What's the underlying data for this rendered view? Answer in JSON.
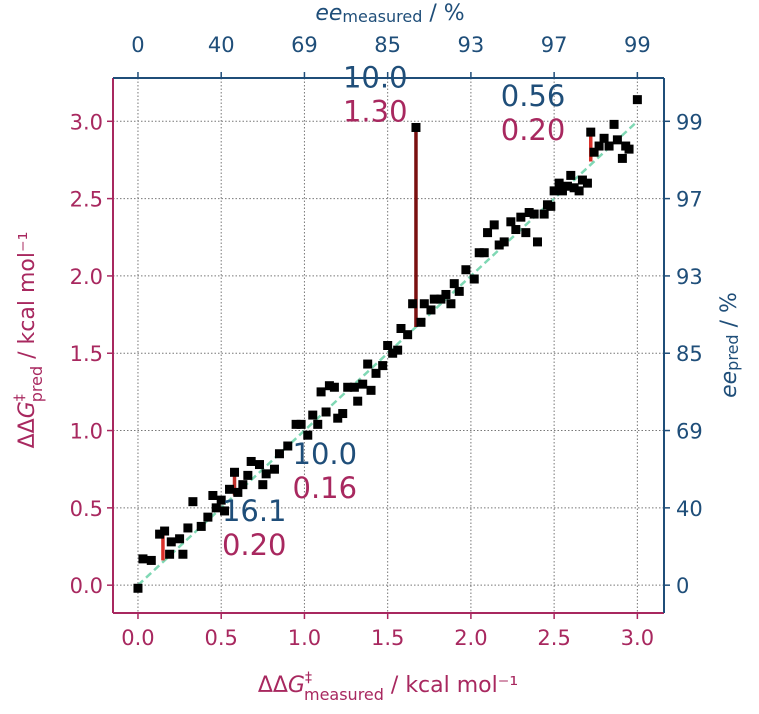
{
  "chart_data": {
    "type": "scatter",
    "x_label": {
      "prefix": "ΔΔ",
      "italic": "G",
      "sup": "‡",
      "sub": "measured",
      "suffix": " / kcal mol⁻¹"
    },
    "y_label": {
      "prefix": "ΔΔ",
      "italic": "G",
      "sup": "‡",
      "sub": "pred",
      "suffix": " / kcal mol⁻¹"
    },
    "x2_label": {
      "italic": "ee",
      "sub": "measured",
      "suffix": " / %"
    },
    "y2_label": {
      "italic": "ee",
      "sub": "pred",
      "suffix": " / %"
    },
    "xlim": [
      -0.15,
      3.16
    ],
    "ylim": [
      -0.18,
      3.28
    ],
    "xticks": [
      {
        "value": 0,
        "label": "0.0"
      },
      0.5,
      {
        "value": 1,
        "label": "1.0"
      },
      1.5,
      {
        "value": 2,
        "label": "2.0"
      },
      2.5,
      {
        "value": 3,
        "label": "3.0"
      }
    ],
    "yticks": [
      {
        "value": 0,
        "label": "0.0"
      },
      0.5,
      {
        "value": 1,
        "label": "1.0"
      },
      1.5,
      {
        "value": 2,
        "label": "2.0"
      },
      2.5,
      {
        "value": 3,
        "label": "3.0"
      }
    ],
    "x2ticks": [
      0,
      {
        "value": 0.5,
        "label": "40"
      },
      {
        "value": 1,
        "label": "69"
      },
      {
        "value": 1.5,
        "label": "85"
      },
      {
        "value": 2,
        "label": "93"
      },
      {
        "value": 2.5,
        "label": "97"
      },
      {
        "value": 3,
        "label": "99"
      }
    ],
    "y2ticks": [
      0,
      {
        "value": 0.5,
        "label": "40"
      },
      {
        "value": 1,
        "label": "69"
      },
      {
        "value": 1.5,
        "label": "85"
      },
      {
        "value": 2,
        "label": "93"
      },
      {
        "value": 2.5,
        "label": "97"
      },
      {
        "value": 3,
        "label": "99"
      }
    ],
    "grid": true,
    "primary_color": "#a8285f",
    "secondary_color": "#1f4e79",
    "color": "#000000",
    "x": [
      0.0,
      0.03,
      0.08,
      0.13,
      0.16,
      0.19,
      0.2,
      0.25,
      0.27,
      0.3,
      0.33,
      0.38,
      0.42,
      0.45,
      0.47,
      0.5,
      0.52,
      0.55,
      0.58,
      0.6,
      0.63,
      0.66,
      0.68,
      0.73,
      0.75,
      0.77,
      0.82,
      0.85,
      0.9,
      0.95,
      0.98,
      1.02,
      1.05,
      1.08,
      1.1,
      1.13,
      1.15,
      1.18,
      1.2,
      1.23,
      1.26,
      1.3,
      1.32,
      1.35,
      1.38,
      1.4,
      1.43,
      1.47,
      1.5,
      1.53,
      1.56,
      1.58,
      1.62,
      1.65,
      1.67,
      1.7,
      1.72,
      1.76,
      1.78,
      1.82,
      1.85,
      1.88,
      1.9,
      1.93,
      1.97,
      2.02,
      2.05,
      2.08,
      2.1,
      2.14,
      2.17,
      2.2,
      2.24,
      2.27,
      2.3,
      2.33,
      2.35,
      2.38,
      2.4,
      2.44,
      2.46,
      2.48,
      2.5,
      2.53,
      2.55,
      2.58,
      2.6,
      2.62,
      2.65,
      2.67,
      2.7,
      2.72,
      2.74,
      2.77,
      2.8,
      2.83,
      2.86,
      2.88,
      2.91,
      2.93,
      2.95,
      3.0
    ],
    "y": [
      -0.02,
      0.17,
      0.16,
      0.33,
      0.35,
      0.2,
      0.28,
      0.3,
      0.2,
      0.37,
      0.54,
      0.38,
      0.44,
      0.58,
      0.5,
      0.55,
      0.48,
      0.62,
      0.73,
      0.6,
      0.65,
      0.71,
      0.8,
      0.78,
      0.65,
      0.72,
      0.75,
      0.85,
      0.9,
      1.04,
      1.04,
      0.97,
      1.1,
      1.04,
      1.25,
      1.12,
      1.29,
      1.28,
      1.08,
      1.11,
      1.28,
      1.28,
      1.19,
      1.3,
      1.43,
      1.26,
      1.37,
      1.42,
      1.55,
      1.5,
      1.52,
      1.66,
      1.62,
      1.82,
      2.96,
      1.7,
      1.82,
      1.78,
      1.85,
      1.85,
      1.88,
      1.82,
      1.95,
      1.9,
      2.04,
      1.98,
      2.15,
      2.15,
      2.28,
      2.33,
      2.2,
      2.22,
      2.35,
      2.3,
      2.38,
      2.28,
      2.41,
      2.4,
      2.22,
      2.4,
      2.46,
      2.45,
      2.55,
      2.6,
      2.55,
      2.58,
      2.65,
      2.57,
      2.55,
      2.62,
      2.6,
      2.93,
      2.8,
      2.84,
      2.89,
      2.84,
      2.98,
      2.88,
      2.76,
      2.84,
      2.82,
      3.14
    ],
    "parity_line": {
      "x": [
        0,
        3
      ],
      "y": [
        0,
        3
      ],
      "color": "#7fd8b4"
    },
    "segments": [
      {
        "x": 0.15,
        "y0": 0.16,
        "y1": 0.35,
        "color": "#d9302a"
      },
      {
        "x": 0.58,
        "y0": 0.58,
        "y1": 0.72,
        "color": "#c0302a"
      },
      {
        "x": 1.67,
        "y0": 1.67,
        "y1": 2.96,
        "color": "#7a1010"
      },
      {
        "x": 2.72,
        "y0": 2.74,
        "y1": 2.93,
        "color": "#d9302a"
      }
    ],
    "annotations": [
      {
        "ee": "16.1",
        "ddg": "0.20"
      },
      {
        "ee": "10.0",
        "ddg": "0.16"
      },
      {
        "ee": "10.0",
        "ddg": "1.30"
      },
      {
        "ee": "0.56",
        "ddg": "0.20"
      }
    ]
  }
}
